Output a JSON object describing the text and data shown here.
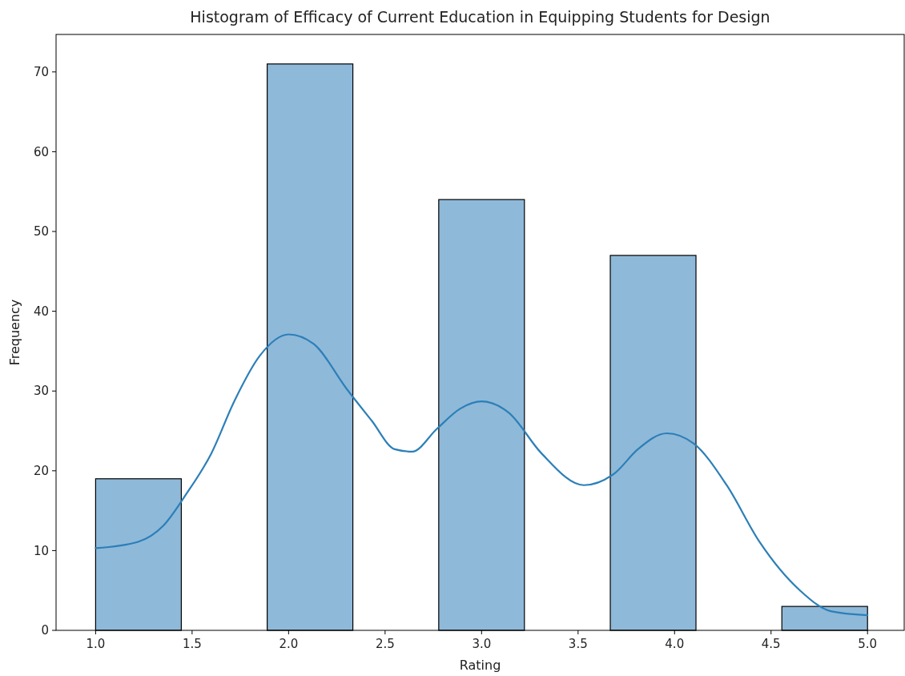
{
  "chart_data": {
    "type": "histogram",
    "title": "Histogram of Efficacy of Current Education in Equipping Students for Design",
    "xlabel": "Rating",
    "ylabel": "Frequency",
    "bins": [
      1,
      1.444,
      1.889,
      2.333,
      2.778,
      3.222,
      3.667,
      4.111,
      4.556,
      5
    ],
    "values": [
      19,
      0,
      71,
      0,
      54,
      0,
      47,
      0,
      3
    ],
    "color": "#8fb9d9",
    "series": [
      {
        "type": "line",
        "color": "#2c7fb8",
        "x": [
          1,
          1.22,
          1.35,
          1.47,
          1.6,
          1.72,
          1.85,
          2,
          2.13,
          2.3,
          2.43,
          2.55,
          2.64,
          2.77,
          2.89,
          3,
          3.14,
          3.31,
          3.53,
          3.69,
          3.81,
          3.96,
          4.1,
          4.27,
          4.44,
          4.65,
          4.81,
          5
        ],
        "values": [
          10.3,
          11.1,
          13.1,
          17.1,
          22.2,
          28.8,
          34.4,
          37.1,
          35.9,
          30.3,
          26.3,
          22.7,
          22.4,
          25.3,
          27.8,
          28.7,
          27.3,
          22.2,
          18.2,
          19.7,
          22.7,
          24.7,
          23.4,
          18.2,
          11.1,
          5,
          2.4,
          1.9
        ]
      }
    ],
    "xlim": [
      0.795,
      5.19
    ],
    "ylim": [
      0,
      74.7
    ],
    "xticks": [
      {
        "value": 1,
        "label": "1.0"
      },
      {
        "value": 1.5,
        "label": "1.5"
      },
      {
        "value": 2,
        "label": "2.0"
      },
      {
        "value": 2.5,
        "label": "2.5"
      },
      {
        "value": 3,
        "label": "3.0"
      },
      {
        "value": 3.5,
        "label": "3.5"
      },
      {
        "value": 4,
        "label": "4.0"
      },
      {
        "value": 4.5,
        "label": "4.5"
      },
      {
        "value": 5,
        "label": "5.0"
      }
    ],
    "yticks": [
      0,
      10,
      20,
      30,
      40,
      50,
      60,
      70
    ],
    "grid": false
  }
}
